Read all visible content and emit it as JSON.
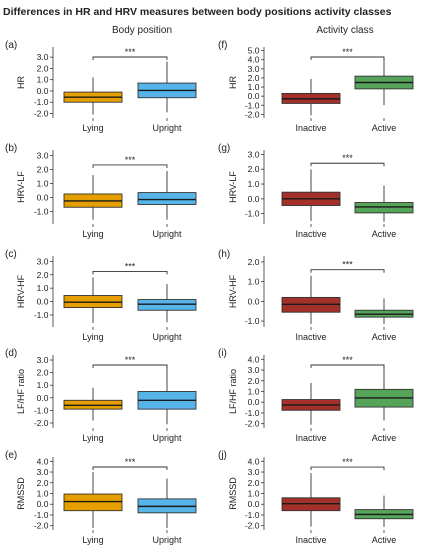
{
  "figure": {
    "title": "Differences in HR and HRV measures between body positions activity classes",
    "col_titles": [
      "Body position",
      "Activity class"
    ]
  },
  "colors": {
    "lying": "#E69F00",
    "upright": "#56B4E9",
    "inactive": "#A33129",
    "active": "#56A35A",
    "median_line": "#1a1a1a",
    "text": "#222222"
  },
  "chart_data": [
    {
      "panel_label": "(a)",
      "type": "box",
      "ylabel": "HR",
      "ylim": [
        -2.4,
        3.9
      ],
      "yticks": [
        -2.0,
        -1.0,
        0.0,
        1.0,
        2.0,
        3.0
      ],
      "significance": "***",
      "categories": [
        "Lying",
        "Upright"
      ],
      "boxes": [
        {
          "category": "Lying",
          "whisker_low": -2.1,
          "q1": -1.0,
          "median": -0.55,
          "q3": -0.1,
          "whisker_high": 1.2
        },
        {
          "category": "Upright",
          "whisker_low": -1.9,
          "q1": -0.6,
          "median": 0.05,
          "q3": 0.7,
          "whisker_high": 2.6
        }
      ]
    },
    {
      "panel_label": "(f)",
      "type": "box",
      "ylabel": "HR",
      "ylim": [
        -2.4,
        5.4
      ],
      "yticks": [
        -2.0,
        -1.0,
        0.0,
        1.0,
        2.0,
        3.0,
        4.0,
        5.0
      ],
      "significance": "***",
      "categories": [
        "Inactive",
        "Active"
      ],
      "boxes": [
        {
          "category": "Inactive",
          "whisker_low": -2.1,
          "q1": -0.8,
          "median": -0.3,
          "q3": 0.3,
          "whisker_high": 1.9
        },
        {
          "category": "Active",
          "whisker_low": -1.0,
          "q1": 0.8,
          "median": 1.5,
          "q3": 2.2,
          "whisker_high": 4.2
        }
      ]
    },
    {
      "panel_label": "(b)",
      "type": "box",
      "ylabel": "HRV-LF",
      "ylim": [
        -1.9,
        3.4
      ],
      "yticks": [
        -1.0,
        0.0,
        1.0,
        2.0,
        3.0
      ],
      "significance": "***",
      "categories": [
        "Lying",
        "Upright"
      ],
      "boxes": [
        {
          "category": "Lying",
          "whisker_low": -1.6,
          "q1": -0.7,
          "median": -0.25,
          "q3": 0.25,
          "whisker_high": 1.6
        },
        {
          "category": "Upright",
          "whisker_low": -1.6,
          "q1": -0.5,
          "median": -0.15,
          "q3": 0.35,
          "whisker_high": 1.9
        }
      ]
    },
    {
      "panel_label": "(g)",
      "type": "box",
      "ylabel": "HRV-LF",
      "ylim": [
        -1.7,
        3.3
      ],
      "yticks": [
        -1.0,
        0.0,
        1.0,
        2.0,
        3.0
      ],
      "significance": "***",
      "categories": [
        "Inactive",
        "Active"
      ],
      "boxes": [
        {
          "category": "Inactive",
          "whisker_low": -1.5,
          "q1": -0.45,
          "median": 0.0,
          "q3": 0.45,
          "whisker_high": 2.0
        },
        {
          "category": "Active",
          "whisker_low": -1.55,
          "q1": -0.95,
          "median": -0.55,
          "q3": -0.25,
          "whisker_high": 0.9
        }
      ]
    },
    {
      "panel_label": "(c)",
      "type": "box",
      "ylabel": "HRV-HF",
      "ylim": [
        -1.9,
        3.4
      ],
      "yticks": [
        -1.0,
        0.0,
        1.0,
        2.0,
        3.0
      ],
      "significance": "***",
      "categories": [
        "Lying",
        "Upright"
      ],
      "boxes": [
        {
          "category": "Lying",
          "whisker_low": -1.6,
          "q1": -0.45,
          "median": -0.05,
          "q3": 0.45,
          "whisker_high": 1.8
        },
        {
          "category": "Upright",
          "whisker_low": -1.55,
          "q1": -0.65,
          "median": -0.2,
          "q3": 0.15,
          "whisker_high": 1.3
        }
      ]
    },
    {
      "panel_label": "(h)",
      "type": "box",
      "ylabel": "HRV-HF",
      "ylim": [
        -1.3,
        2.3
      ],
      "yticks": [
        -1.0,
        0.0,
        1.0,
        2.0
      ],
      "significance": "***",
      "categories": [
        "Inactive",
        "Active"
      ],
      "boxes": [
        {
          "category": "Inactive",
          "whisker_low": -1.15,
          "q1": -0.55,
          "median": -0.15,
          "q3": 0.2,
          "whisker_high": 1.3
        },
        {
          "category": "Active",
          "whisker_low": -1.15,
          "q1": -0.8,
          "median": -0.65,
          "q3": -0.45,
          "whisker_high": 0.15
        }
      ]
    },
    {
      "panel_label": "(d)",
      "type": "box",
      "ylabel": "LF/HF ratio",
      "ylim": [
        -2.4,
        3.4
      ],
      "yticks": [
        -2.0,
        -1.0,
        0.0,
        1.0,
        2.0,
        3.0
      ],
      "significance": "***",
      "categories": [
        "Lying",
        "Upright"
      ],
      "boxes": [
        {
          "category": "Lying",
          "whisker_low": -1.8,
          "q1": -0.9,
          "median": -0.6,
          "q3": -0.2,
          "whisker_high": 0.8
        },
        {
          "category": "Upright",
          "whisker_low": -2.1,
          "q1": -0.9,
          "median": -0.2,
          "q3": 0.5,
          "whisker_high": 2.6
        }
      ]
    },
    {
      "panel_label": "(i)",
      "type": "box",
      "ylabel": "LF/HF ratio",
      "ylim": [
        -2.4,
        4.4
      ],
      "yticks": [
        -2.0,
        -1.0,
        0.0,
        1.0,
        2.0,
        3.0,
        4.0
      ],
      "significance": "***",
      "categories": [
        "Inactive",
        "Active"
      ],
      "boxes": [
        {
          "category": "Inactive",
          "whisker_low": -2.1,
          "q1": -0.75,
          "median": -0.25,
          "q3": 0.25,
          "whisker_high": 1.8
        },
        {
          "category": "Active",
          "whisker_low": -1.7,
          "q1": -0.45,
          "median": 0.4,
          "q3": 1.2,
          "whisker_high": 3.5
        }
      ]
    },
    {
      "panel_label": "(e)",
      "type": "box",
      "ylabel": "RMSSD",
      "ylim": [
        -2.4,
        4.4
      ],
      "yticks": [
        -2.0,
        -1.0,
        0.0,
        1.0,
        2.0,
        3.0,
        4.0
      ],
      "significance": "***",
      "categories": [
        "Lying",
        "Upright"
      ],
      "boxes": [
        {
          "category": "Lying",
          "whisker_low": -2.2,
          "q1": -0.6,
          "median": 0.25,
          "q3": 0.95,
          "whisker_high": 3.0
        },
        {
          "category": "Upright",
          "whisker_low": -2.2,
          "q1": -0.8,
          "median": -0.2,
          "q3": 0.5,
          "whisker_high": 2.4
        }
      ]
    },
    {
      "panel_label": "(j)",
      "type": "box",
      "ylabel": "RMSSD",
      "ylim": [
        -2.4,
        4.4
      ],
      "yticks": [
        -2.0,
        -1.0,
        0.0,
        1.0,
        2.0,
        3.0,
        4.0
      ],
      "significance": "***",
      "categories": [
        "Inactive",
        "Active"
      ],
      "boxes": [
        {
          "category": "Inactive",
          "whisker_low": -2.1,
          "q1": -0.6,
          "median": 0.05,
          "q3": 0.6,
          "whisker_high": 2.9
        },
        {
          "category": "Active",
          "whisker_low": -2.1,
          "q1": -1.35,
          "median": -0.95,
          "q3": -0.5,
          "whisker_high": 0.8
        }
      ]
    }
  ]
}
